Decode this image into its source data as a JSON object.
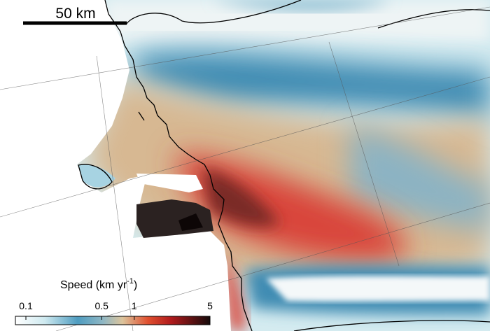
{
  "scale_bar": {
    "label": "50 km"
  },
  "colorbar": {
    "title": "Speed (km yr",
    "title_sup": "-1",
    "title_end": ")",
    "lim": [
      0.08,
      5
    ],
    "ticks": [
      0.1,
      0.5,
      1,
      5
    ],
    "log": true
  }
}
